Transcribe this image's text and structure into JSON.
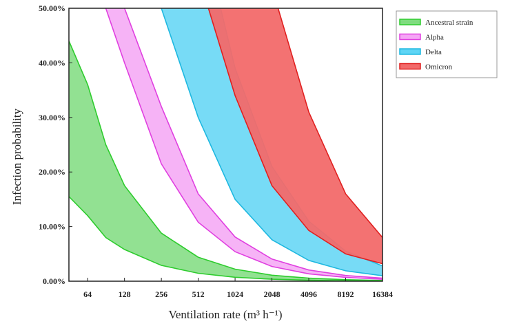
{
  "chart_data": {
    "type": "area",
    "title": "",
    "xlabel": "Ventilation rate (m³ h⁻¹)",
    "ylabel": "Infection probability",
    "x_scale": "log2",
    "xlim": [
      45,
      16384
    ],
    "ylim": [
      0,
      50
    ],
    "x_ticks": [
      64,
      128,
      256,
      512,
      1024,
      2048,
      4096,
      8192,
      16384
    ],
    "x_tick_labels": [
      "64",
      "128",
      "256",
      "512",
      "1024",
      "2048",
      "4096",
      "8192",
      "16384"
    ],
    "y_ticks": [
      0,
      10,
      20,
      30,
      40,
      50
    ],
    "y_tick_labels": [
      "0.00%",
      "10.00%",
      "20.00%",
      "30.00%",
      "40.00%",
      "50.00%"
    ],
    "legend_position": "outside-right-top",
    "grid": false,
    "series": [
      {
        "name": "Ancestral strain",
        "color": "#2ecc2e",
        "fill": "#7fdc7f",
        "upper_x": [
          45,
          64,
          90,
          128,
          256,
          512,
          1024,
          2048,
          4096,
          8192,
          16384
        ],
        "upper_y": [
          44,
          36,
          25,
          17.5,
          8.8,
          4.4,
          2.2,
          1.1,
          0.55,
          0.28,
          0.14
        ],
        "lower_x": [
          45,
          64,
          90,
          128,
          256,
          512,
          1024,
          2048,
          4096,
          8192,
          16384
        ],
        "lower_y": [
          15.5,
          12,
          8,
          5.8,
          2.9,
          1.45,
          0.72,
          0.36,
          0.18,
          0.09,
          0.05
        ]
      },
      {
        "name": "Alpha",
        "color": "#e040e0",
        "fill": "#f5a6f5",
        "upper_x": [
          128,
          256,
          512,
          1024,
          2048,
          4096,
          8192,
          16384
        ],
        "upper_y": [
          50,
          32,
          16,
          8.1,
          4.05,
          2.05,
          1.05,
          0.55
        ],
        "lower_x": [
          90,
          128,
          256,
          512,
          1024,
          2048,
          4096,
          8192,
          16384
        ],
        "lower_y": [
          50,
          40,
          21.5,
          10.8,
          5.4,
          2.7,
          1.35,
          0.7,
          0.35
        ]
      },
      {
        "name": "Delta",
        "color": "#1fb8e0",
        "fill": "#5fd5f5",
        "upper_x": [
          780,
          1024,
          2048,
          4096,
          8192,
          16384
        ],
        "upper_y": [
          50,
          39,
          21,
          11,
          5.5,
          2.8
        ],
        "lower_x": [
          256,
          512,
          1024,
          2048,
          4096,
          8192,
          16384
        ],
        "lower_y": [
          50,
          30,
          15,
          7.6,
          3.8,
          1.9,
          1.0
        ]
      },
      {
        "name": "Omicron",
        "color": "#e02020",
        "fill": "#f26a6a",
        "upper_x": [
          2300,
          4096,
          8192,
          16384
        ],
        "upper_y": [
          50,
          31,
          16,
          8
        ],
        "lower_x": [
          620,
          1024,
          2048,
          4096,
          8192,
          16384
        ],
        "lower_y": [
          50,
          34,
          17.5,
          9.3,
          5.0,
          3.2
        ]
      }
    ]
  }
}
